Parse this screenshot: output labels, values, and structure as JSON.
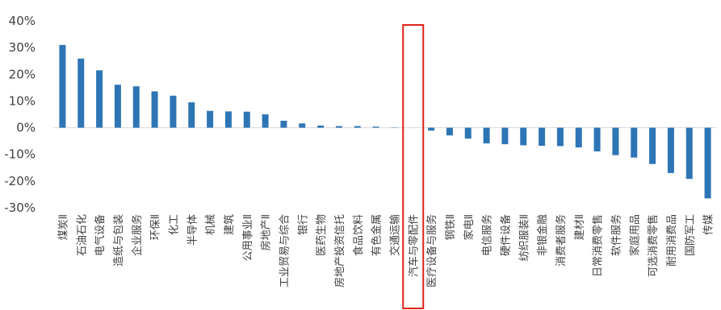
{
  "chart_data": {
    "type": "bar",
    "title": "",
    "xlabel": "",
    "ylabel": "",
    "ylim": [
      -0.3,
      0.4
    ],
    "y_tick_values": [
      -0.3,
      -0.2,
      -0.1,
      0.0,
      0.1,
      0.2,
      0.3,
      0.4
    ],
    "y_tick_labels": [
      "-30%",
      "-20%",
      "-10%",
      "0%",
      "10%",
      "20%",
      "30%",
      "40%"
    ],
    "grid": false,
    "bar_color": "#2E75B6",
    "highlight_color": "#E0201B",
    "highlight_category": "汽车与零配件",
    "categories": [
      "煤炭Ⅱ",
      "石油石化",
      "电气设备",
      "造纸与包装",
      "企业服务",
      "环保Ⅱ",
      "化工",
      "半导体",
      "机械",
      "建筑",
      "公用事业Ⅱ",
      "房地产Ⅱ",
      "工业贸易与综合",
      "银行",
      "医药生物",
      "房地产投资信托",
      "食品饮料",
      "有色金属",
      "交通运输",
      "汽车与零配件",
      "医疗设备与服务",
      "钢铁Ⅱ",
      "家电Ⅱ",
      "电信服务",
      "硬件设备",
      "纺织服装Ⅱ",
      "非银金融",
      "消费者服务",
      "建材Ⅱ",
      "日常消费零售",
      "软件服务",
      "家庭用品",
      "可选消费零售",
      "耐用消费品",
      "国防军工",
      "传媒"
    ],
    "values": [
      0.31,
      0.259,
      0.215,
      0.161,
      0.155,
      0.136,
      0.12,
      0.095,
      0.063,
      0.061,
      0.06,
      0.05,
      0.026,
      0.016,
      0.008,
      0.006,
      0.006,
      0.004,
      0.001,
      0.0,
      -0.011,
      -0.029,
      -0.041,
      -0.059,
      -0.062,
      -0.066,
      -0.068,
      -0.069,
      -0.074,
      -0.089,
      -0.103,
      -0.112,
      -0.136,
      -0.17,
      -0.192,
      -0.265
    ]
  }
}
